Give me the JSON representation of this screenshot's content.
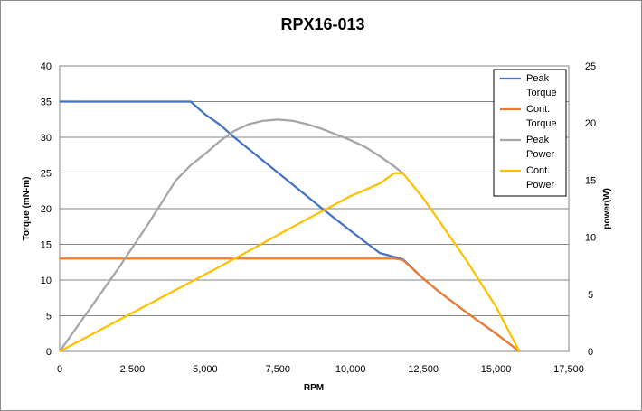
{
  "chart_data": {
    "type": "line",
    "title": "RPX16-013",
    "xlabel": "RPM",
    "ylabel_left": "Torque (mN-m)",
    "ylabel_right": "power(W)",
    "xlim": [
      0,
      17500
    ],
    "ylim_left": [
      0,
      40
    ],
    "ylim_right": [
      0,
      25
    ],
    "x_ticks": [
      "0",
      "2,500",
      "5,000",
      "7,500",
      "10,000",
      "12,500",
      "15,000",
      "17,500"
    ],
    "y_ticks_left": [
      "0",
      "5",
      "10",
      "15",
      "20",
      "25",
      "30",
      "35",
      "40"
    ],
    "y_ticks_right": [
      "0",
      "5",
      "10",
      "15",
      "20",
      "25"
    ],
    "grid": "horizontal",
    "legend_position": "top-right",
    "series": [
      {
        "name": "Peak Torque",
        "legend_lines": [
          "Peak",
          "Torque"
        ],
        "axis": "left",
        "color": "#4472C4",
        "x": [
          0,
          4500,
          5000,
          5500,
          6000,
          7000,
          8000,
          9000,
          10000,
          11000,
          11800,
          12500,
          13000,
          14000,
          15000,
          15800
        ],
        "values": [
          35,
          35,
          33.2,
          31.8,
          30.0,
          26.7,
          23.4,
          20.1,
          16.9,
          13.8,
          12.9,
          10.2,
          8.5,
          5.4,
          2.5,
          0
        ]
      },
      {
        "name": "Cont. Torque",
        "legend_lines": [
          "Cont.",
          "Torque"
        ],
        "axis": "left",
        "color": "#ED7D31",
        "x": [
          0,
          11500,
          11800,
          12500,
          13000,
          14000,
          15000,
          15800
        ],
        "values": [
          13,
          13,
          12.8,
          10.2,
          8.5,
          5.4,
          2.5,
          0
        ]
      },
      {
        "name": "Peak Power",
        "legend_lines": [
          "Peak",
          "Power"
        ],
        "axis": "right",
        "color": "#A5A5A5",
        "x": [
          0,
          1000,
          2000,
          3000,
          3500,
          4000,
          4500,
          5000,
          5500,
          6000,
          6500,
          7000,
          7500,
          8000,
          8500,
          9000,
          9500,
          10000,
          10500,
          11000,
          11500,
          11800
        ],
        "values": [
          0,
          3.6,
          7.2,
          11.0,
          13.0,
          15.0,
          16.3,
          17.3,
          18.4,
          19.3,
          19.9,
          20.2,
          20.3,
          20.2,
          19.9,
          19.5,
          19.0,
          18.5,
          17.9,
          17.1,
          16.2,
          15.6
        ]
      },
      {
        "name": "Cont. Power",
        "legend_lines": [
          "Cont.",
          "Power"
        ],
        "axis": "right",
        "color": "#FFC000",
        "x": [
          0,
          2000,
          4000,
          6000,
          8000,
          10000,
          11000,
          11500,
          11800,
          12500,
          13000,
          14000,
          15000,
          15800
        ],
        "values": [
          0,
          2.7,
          5.4,
          8.1,
          10.9,
          13.6,
          14.7,
          15.6,
          15.6,
          13.4,
          11.6,
          7.9,
          3.9,
          0
        ]
      }
    ]
  }
}
